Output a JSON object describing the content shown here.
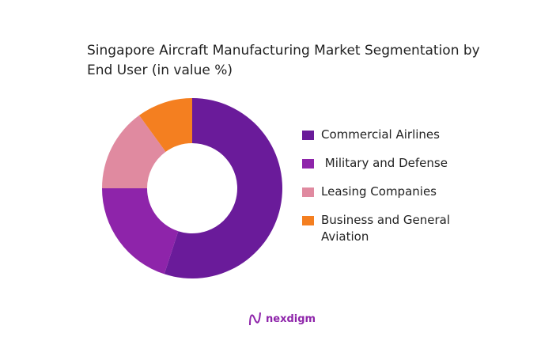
{
  "chart_data": {
    "type": "pie",
    "donut": true,
    "title": "Singapore Aircraft Manufacturing Market Segmentation by End User (in value %)",
    "categories": [
      "Commercial Airlines",
      " Military and Defense",
      "Leasing Companies",
      "Business and General Aviation"
    ],
    "values": [
      55,
      20,
      15,
      10
    ],
    "colors": [
      "#6a1b9a",
      "#8e24aa",
      "#e08aa0",
      "#f47f20"
    ],
    "legend_position": "right"
  },
  "logo": {
    "text": "nexdigm"
  }
}
